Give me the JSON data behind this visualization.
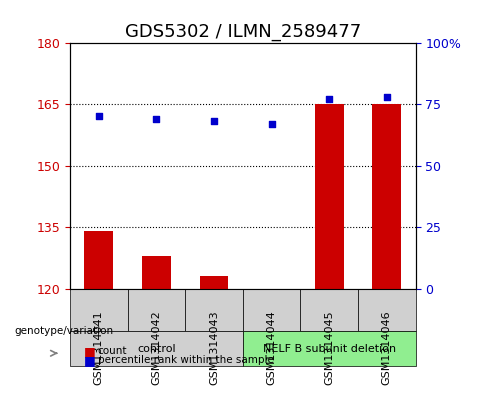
{
  "title": "GDS5302 / ILMN_2589477",
  "samples": [
    "GSM1314041",
    "GSM1314042",
    "GSM1314043",
    "GSM1314044",
    "GSM1314045",
    "GSM1314046"
  ],
  "counts": [
    134,
    128,
    123,
    120,
    165,
    165
  ],
  "percentile_ranks": [
    70,
    69,
    68,
    67,
    77,
    78
  ],
  "ylim_left": [
    120,
    180
  ],
  "ylim_right": [
    0,
    100
  ],
  "yticks_left": [
    120,
    135,
    150,
    165,
    180
  ],
  "yticks_right": [
    0,
    25,
    50,
    75,
    100
  ],
  "ytick_labels_left": [
    "120",
    "135",
    "150",
    "165",
    "180"
  ],
  "ytick_labels_right": [
    "0",
    "25",
    "50",
    "75",
    "100%"
  ],
  "hlines": [
    135,
    150,
    165
  ],
  "bar_color": "#cc0000",
  "dot_color": "#0000cc",
  "bar_width": 0.5,
  "groups": [
    {
      "label": "control",
      "samples": [
        0,
        1,
        2
      ],
      "color": "#d0d0d0"
    },
    {
      "label": "NELF B subunit deletion",
      "samples": [
        3,
        4,
        5
      ],
      "color": "#90ee90"
    }
  ],
  "xlabel_area_color": "#d0d0d0",
  "group_label_y": "genotype/variation",
  "legend_count_label": "count",
  "legend_percentile_label": "percentile rank within the sample",
  "left_tick_color": "#cc0000",
  "right_tick_color": "#0000cc",
  "title_fontsize": 13,
  "tick_fontsize": 9,
  "sample_fontsize": 8
}
